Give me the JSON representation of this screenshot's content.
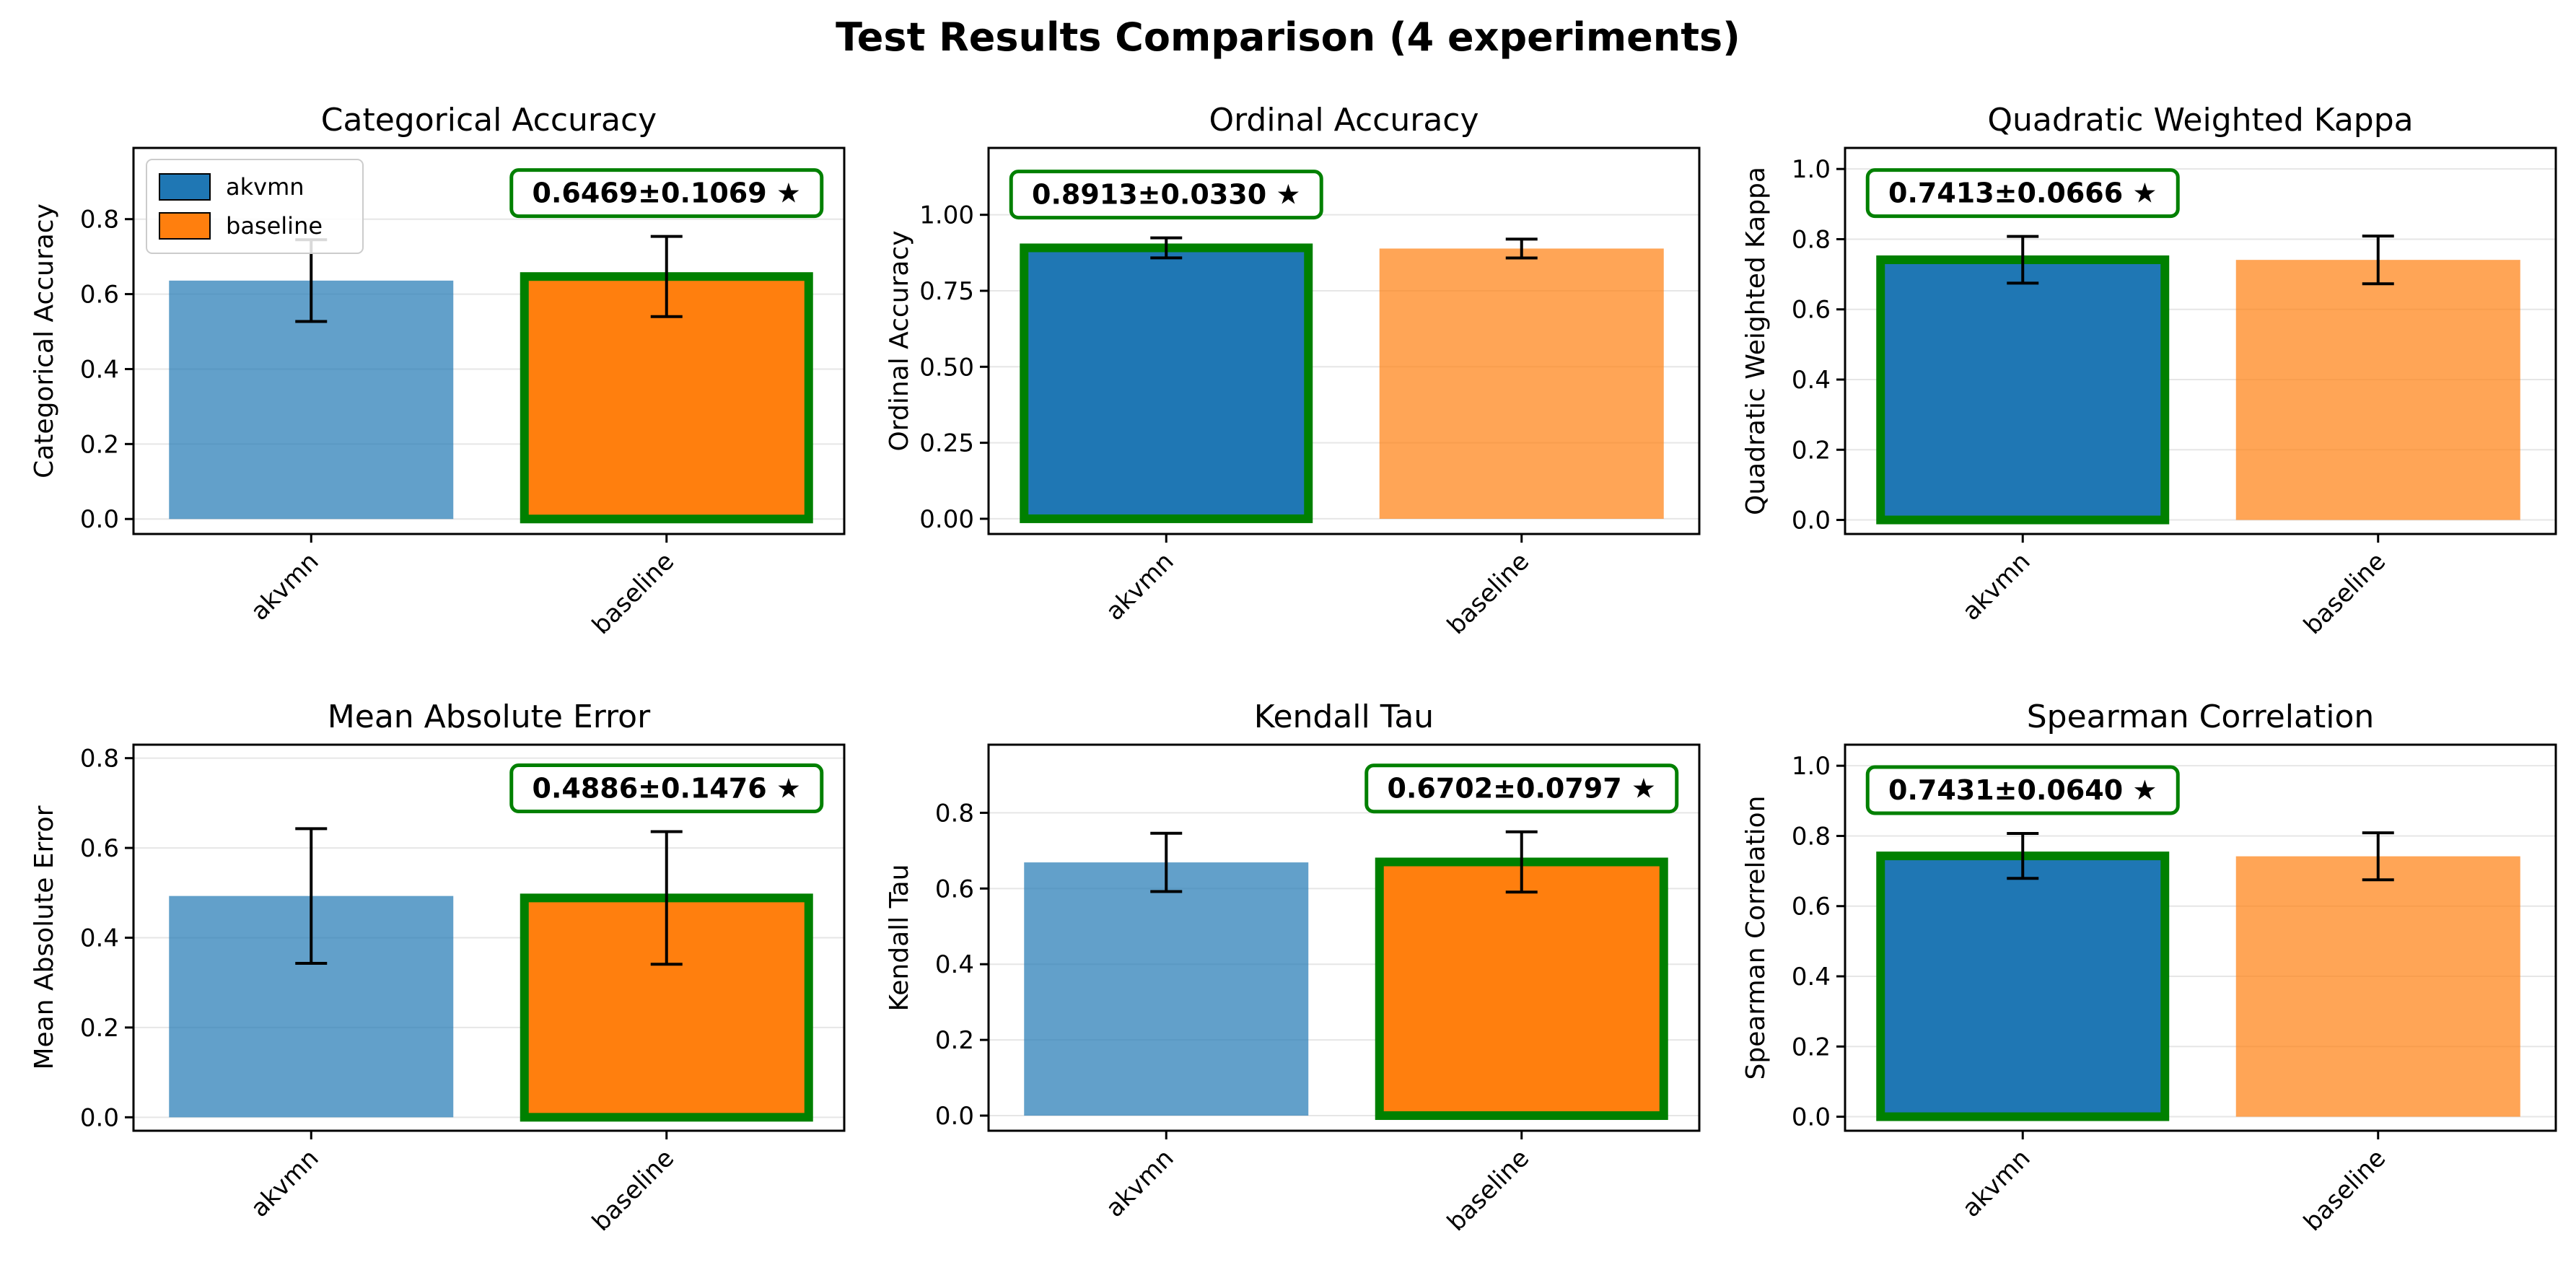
{
  "figure": {
    "title": "Test Results Comparison (4 experiments)"
  },
  "colors": {
    "akvmn": "#1f77b4",
    "baseline": "#ff7f0e",
    "highlight": "#008000",
    "error_bar": "#000000",
    "grid": "#e6e6e6"
  },
  "legend": {
    "location": "upper-left of first panel",
    "entries": [
      "akvmn",
      "baseline"
    ]
  },
  "chart_data": [
    {
      "type": "bar",
      "title": "Categorical Accuracy",
      "ylabel": "Categorical Accuracy",
      "categories": [
        "akvmn",
        "baseline"
      ],
      "values": [
        0.636,
        0.6469
      ],
      "errors": [
        0.109,
        0.1069
      ],
      "best": "baseline",
      "annotation": "0.6469±0.1069 ★",
      "ylim": [
        -0.04,
        0.99
      ],
      "yticks": [
        0.0,
        0.2,
        0.4,
        0.6,
        0.8
      ],
      "ytick_labels": [
        "0.0",
        "0.2",
        "0.4",
        "0.6",
        "0.8"
      ],
      "legend": true,
      "grid": true
    },
    {
      "type": "bar",
      "title": "Ordinal Accuracy",
      "ylabel": "Ordinal Accuracy",
      "categories": [
        "akvmn",
        "baseline"
      ],
      "values": [
        0.8913,
        0.889
      ],
      "errors": [
        0.033,
        0.031
      ],
      "best": "akvmn",
      "annotation": "0.8913±0.0330 ★",
      "ylim": [
        -0.05,
        1.22
      ],
      "yticks": [
        0.0,
        0.25,
        0.5,
        0.75,
        1.0
      ],
      "ytick_labels": [
        "0.00",
        "0.25",
        "0.50",
        "0.75",
        "1.00"
      ],
      "legend": false,
      "grid": true
    },
    {
      "type": "bar",
      "title": "Quadratic Weighted Kappa",
      "ylabel": "Quadratic Weighted Kappa",
      "categories": [
        "akvmn",
        "baseline"
      ],
      "values": [
        0.7413,
        0.741
      ],
      "errors": [
        0.0666,
        0.068
      ],
      "best": "akvmn",
      "annotation": "0.7413±0.0666 ★",
      "ylim": [
        -0.04,
        1.06
      ],
      "yticks": [
        0.0,
        0.2,
        0.4,
        0.6,
        0.8,
        1.0
      ],
      "ytick_labels": [
        "0.0",
        "0.2",
        "0.4",
        "0.6",
        "0.8",
        "1.0"
      ],
      "legend": false,
      "grid": true
    },
    {
      "type": "bar",
      "title": "Mean Absolute Error",
      "ylabel": "Mean Absolute Error",
      "categories": [
        "akvmn",
        "baseline"
      ],
      "values": [
        0.493,
        0.4886
      ],
      "errors": [
        0.15,
        0.1476
      ],
      "best": "baseline",
      "annotation": "0.4886±0.1476 ★",
      "ylim": [
        -0.03,
        0.83
      ],
      "yticks": [
        0.0,
        0.2,
        0.4,
        0.6,
        0.8
      ],
      "ytick_labels": [
        "0.0",
        "0.2",
        "0.4",
        "0.6",
        "0.8"
      ],
      "legend": false,
      "grid": true
    },
    {
      "type": "bar",
      "title": "Kendall Tau",
      "ylabel": "Kendall Tau",
      "categories": [
        "akvmn",
        "baseline"
      ],
      "values": [
        0.669,
        0.6702
      ],
      "errors": [
        0.077,
        0.0797
      ],
      "best": "baseline",
      "annotation": "0.6702±0.0797 ★",
      "ylim": [
        -0.04,
        0.98
      ],
      "yticks": [
        0.0,
        0.2,
        0.4,
        0.6,
        0.8
      ],
      "ytick_labels": [
        "0.0",
        "0.2",
        "0.4",
        "0.6",
        "0.8"
      ],
      "legend": false,
      "grid": true
    },
    {
      "type": "bar",
      "title": "Spearman Correlation",
      "ylabel": "Spearman Correlation",
      "categories": [
        "akvmn",
        "baseline"
      ],
      "values": [
        0.7431,
        0.742
      ],
      "errors": [
        0.064,
        0.067
      ],
      "best": "akvmn",
      "annotation": "0.7431±0.0640 ★",
      "ylim": [
        -0.04,
        1.06
      ],
      "yticks": [
        0.0,
        0.2,
        0.4,
        0.6,
        0.8,
        1.0
      ],
      "ytick_labels": [
        "0.0",
        "0.2",
        "0.4",
        "0.6",
        "0.8",
        "1.0"
      ],
      "legend": false,
      "grid": true
    }
  ]
}
